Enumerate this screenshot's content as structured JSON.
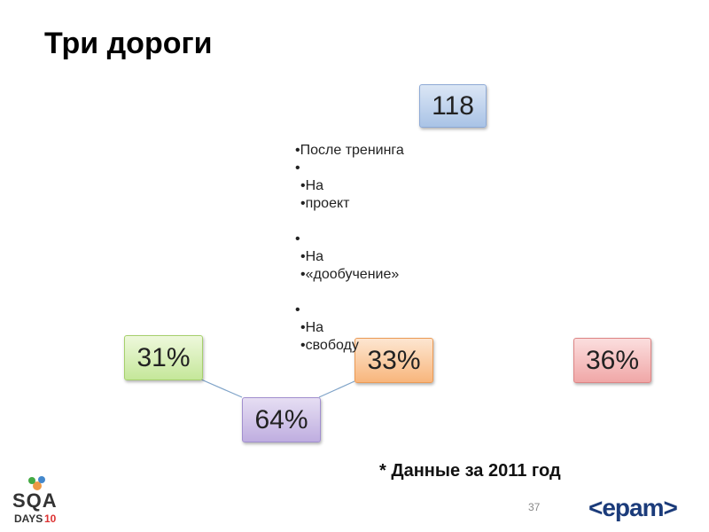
{
  "title": "Три дороги",
  "nodes": [
    {
      "label": "118"
    },
    {
      "label": "31%"
    },
    {
      "label": "64%"
    },
    {
      "label": "33%"
    },
    {
      "label": "36%"
    }
  ],
  "bullets": {
    "heading": "После тренинга",
    "groups": [
      [
        "На",
        "проект"
      ],
      [
        "На",
        "«дообучение»"
      ],
      [
        "На",
        "свободу"
      ]
    ]
  },
  "footnote": "* Данные за 2011 год",
  "page_number": "37",
  "logos": {
    "sqa": "SQA",
    "days": "DAYS",
    "edition": "10",
    "epam": "<epam>"
  }
}
